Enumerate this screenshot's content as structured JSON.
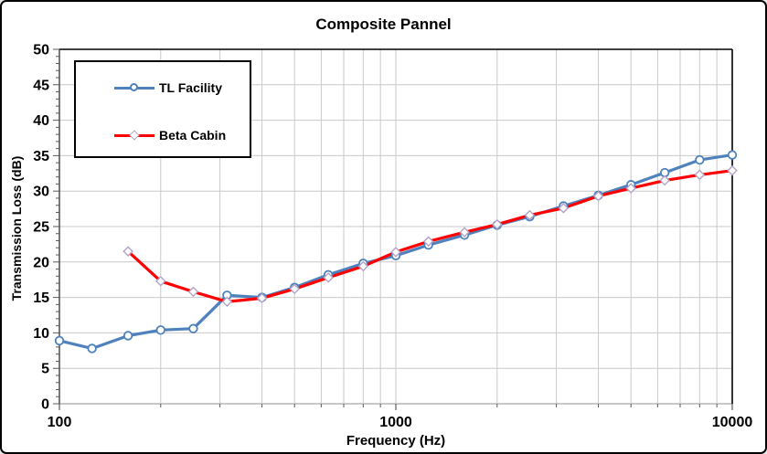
{
  "title": "Composite Pannel",
  "chart_data": {
    "type": "line",
    "title": "Composite Pannel",
    "xlabel": "Frequency (Hz)",
    "ylabel": "Transmission Loss (dB)",
    "x_scale": "log",
    "xlim": [
      100,
      10000
    ],
    "ylim": [
      0,
      50
    ],
    "y_ticks": [
      0,
      5,
      10,
      15,
      20,
      25,
      30,
      35,
      40,
      45,
      50
    ],
    "x_tick_labels": [
      "100",
      "1000",
      "10000"
    ],
    "x_tick_values": [
      100,
      1000,
      10000
    ],
    "grid": true,
    "legend_position": "top-left",
    "x": [
      100,
      125,
      160,
      200,
      250,
      315,
      400,
      500,
      630,
      800,
      1000,
      1250,
      1600,
      2000,
      2500,
      3150,
      4000,
      5000,
      6300,
      8000,
      10000
    ],
    "series": [
      {
        "name": "TL Facility",
        "color": "#4F81BD",
        "marker": "circle",
        "marker_fill": "#FFFFFF",
        "marker_outline": "#4F81BD",
        "values": [
          8.9,
          7.8,
          9.6,
          10.4,
          10.6,
          15.3,
          15.0,
          16.4,
          18.2,
          19.8,
          20.9,
          22.4,
          23.8,
          25.2,
          26.4,
          27.9,
          29.4,
          30.9,
          32.6,
          34.4,
          35.1
        ]
      },
      {
        "name": "Beta Cabin",
        "color": "#FF0000",
        "marker": "diamond",
        "marker_fill": "#FFFFFF",
        "marker_outline": "#B3A2C7",
        "values": [
          null,
          null,
          21.5,
          17.3,
          15.8,
          14.4,
          14.9,
          16.2,
          17.8,
          19.4,
          21.4,
          22.9,
          24.2,
          25.3,
          26.6,
          27.6,
          29.3,
          30.4,
          31.5,
          32.3,
          32.9
        ]
      }
    ]
  },
  "colors": {
    "gridline": "#C9C9C9",
    "zero_line": "#A6A6A6",
    "plot_border": "#000000",
    "left_axis": "#404040",
    "tick": "#595959",
    "text": "#000000",
    "background": "#FFFFFF"
  }
}
